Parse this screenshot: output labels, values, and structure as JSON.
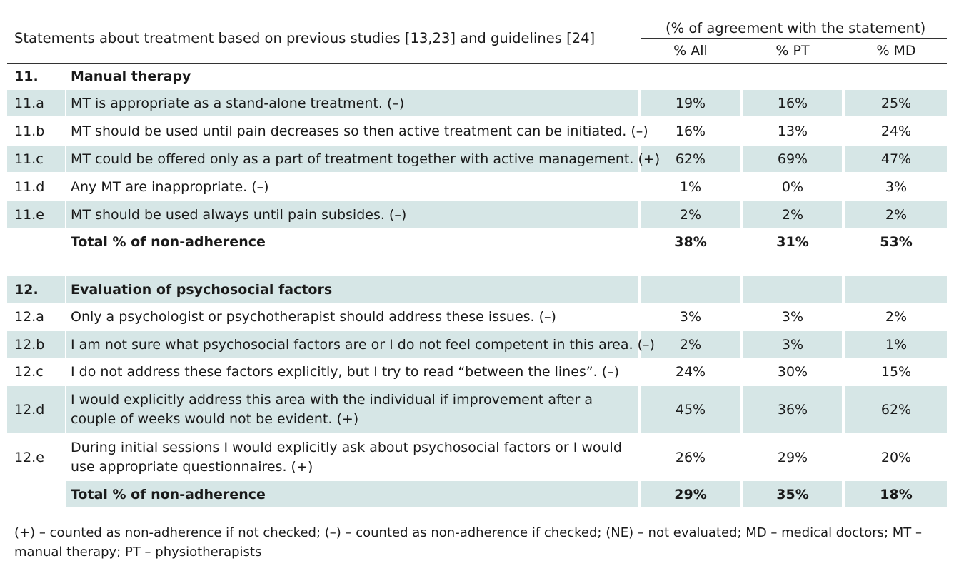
{
  "header": {
    "statements_title": "Statements about treatment based on previous studies [13,23] and guidelines [24]",
    "percent_title": "(% of agreement with the statement)",
    "columns": [
      "% All",
      "% PT",
      "% MD"
    ]
  },
  "section11": {
    "num": "11.",
    "title": "Manual therapy",
    "rows": [
      {
        "id": "11.a",
        "text": "MT is appropriate as a stand-alone treatment. (–)",
        "all": "19%",
        "pt": "16%",
        "md": "25%"
      },
      {
        "id": "11.b",
        "text": "MT should be used until pain decreases so then active treatment can be initiated. (–)",
        "all": "16%",
        "pt": "13%",
        "md": "24%"
      },
      {
        "id": "11.c",
        "text": "MT could be offered only as a part of treatment together with active management. (+)",
        "all": "62%",
        "pt": "69%",
        "md": "47%"
      },
      {
        "id": "11.d",
        "text": "Any MT are inappropriate. (–)",
        "all": "1%",
        "pt": "0%",
        "md": "3%"
      },
      {
        "id": "11.e",
        "text": "MT should be used always until pain subsides. (–)",
        "all": "2%",
        "pt": "2%",
        "md": "2%"
      }
    ],
    "total": {
      "label": "Total % of non-adherence",
      "all": "38%",
      "pt": "31%",
      "md": "53%"
    }
  },
  "section12": {
    "num": "12.",
    "title": "Evaluation of psychosocial factors",
    "rows": [
      {
        "id": "12.a",
        "text": "Only a psychologist or psychotherapist should address these issues. (–)",
        "all": "3%",
        "pt": "3%",
        "md": "2%"
      },
      {
        "id": "12.b",
        "text": "I am not sure what psychosocial factors are or I do not feel competent in this area. (–)",
        "all": "2%",
        "pt": "3%",
        "md": "1%"
      },
      {
        "id": "12.c",
        "text": "I do not address these factors explicitly, but I try to read “between the lines”. (–)",
        "all": "24%",
        "pt": "30%",
        "md": "15%"
      },
      {
        "id": "12.d",
        "text": "I would explicitly address this area with the individual if improvement after a couple of weeks would not be evident. (+)",
        "all": "45%",
        "pt": "36%",
        "md": "62%"
      },
      {
        "id": "12.e",
        "text": "During initial sessions I would explicitly ask about psychosocial factors or I would use appropriate questionnaires. (+)",
        "all": "26%",
        "pt": "29%",
        "md": "20%"
      }
    ],
    "total": {
      "label": "Total % of non-adherence",
      "all": "29%",
      "pt": "35%",
      "md": "18%"
    }
  },
  "footer": {
    "note": "(+) – counted as non-adherence if not checked; (–) – counted as non-adherence if checked; (NE) – not evaluated; MD – medical doctors; MT – manual therapy; PT – physiotherapists"
  }
}
